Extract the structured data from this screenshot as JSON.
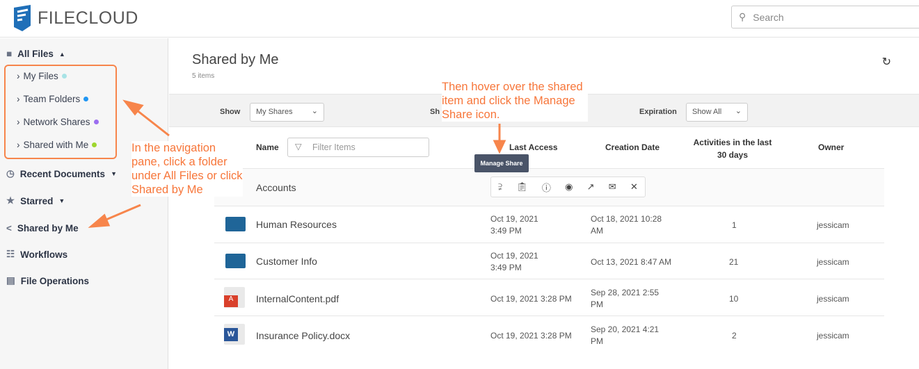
{
  "header": {
    "logo_text": "FILECLOUD",
    "search_placeholder": "Search"
  },
  "sidebar": {
    "all_files": "All Files",
    "sub_items": [
      {
        "label": "My Files",
        "color": "#a8e3e6"
      },
      {
        "label": "Team Folders",
        "color": "#2196f3"
      },
      {
        "label": "Network Shares",
        "color": "#9c6ef0"
      },
      {
        "label": "Shared with Me",
        "color": "#9ed62e"
      }
    ],
    "items": [
      {
        "label": "Recent Documents",
        "caret": true
      },
      {
        "label": "Starred",
        "caret": true
      },
      {
        "label": "Shared by Me"
      },
      {
        "label": "Workflows"
      },
      {
        "label": "File Operations"
      }
    ]
  },
  "main": {
    "title": "Shared by Me",
    "count": "5 items",
    "filters": {
      "show_label": "Show",
      "show_value": "My Shares",
      "share_label": "Sh",
      "expiration_label": "Expiration",
      "expiration_value": "Show All"
    },
    "columns": {
      "name": "Name",
      "filter_placeholder": "Filter Items",
      "last_access": "Last Access",
      "creation_date": "Creation Date",
      "activities": "Activities in the last 30 days",
      "owner": "Owner"
    },
    "tooltip": "Manage Share",
    "rows": [
      {
        "name": "Accounts",
        "type": "folder",
        "last_access": "",
        "created": "",
        "activities": "",
        "owner": ""
      },
      {
        "name": "Human Resources",
        "type": "folder",
        "last_access": "Oct 19, 2021 3:49 PM",
        "created": "Oct 18, 2021 10:28 AM",
        "activities": "1",
        "owner": "jessicam"
      },
      {
        "name": "Customer Info",
        "type": "folder",
        "last_access": "Oct 19, 2021 3:49 PM",
        "created": "Oct 13, 2021 8:47 AM",
        "activities": "21",
        "owner": "jessicam"
      },
      {
        "name": "InternalContent.pdf",
        "type": "pdf",
        "last_access": "Oct 19, 2021 3:28 PM",
        "created": "Sep 28, 2021 2:55 PM",
        "activities": "10",
        "owner": "jessicam"
      },
      {
        "name": "Insurance Policy.docx",
        "type": "docx",
        "last_access": "Oct 19, 2021 3:28 PM",
        "created": "Sep 20, 2021 4:21 PM",
        "activities": "2",
        "owner": "jessicam"
      }
    ]
  },
  "annotations": {
    "nav": "In the navigation pane, click a folder under All Files or click Shared by Me",
    "hover": "Then hover over the shared item and click the Manage Share icon."
  }
}
